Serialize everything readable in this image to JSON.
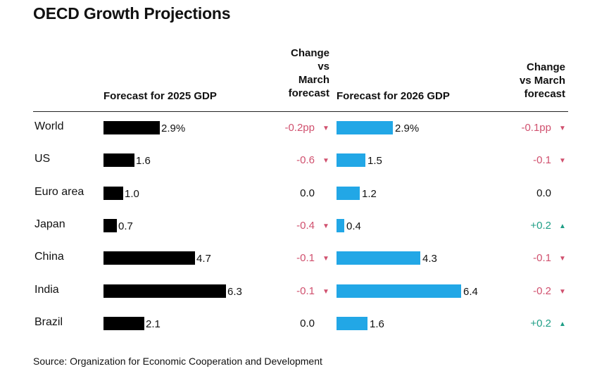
{
  "chart_data": {
    "type": "bar",
    "title": "OECD Growth Projections",
    "columns": {
      "gdp2025": "Forecast for 2025 GDP",
      "chg2025": "Change vs March forecast",
      "gdp2026": "Forecast for 2026 GDP",
      "chg2026": "Change vs March forecast"
    },
    "rows": [
      {
        "country": "World",
        "gdp2025": 2.9,
        "gdp2025_label": "2.9%",
        "chg2025": "-0.2pp",
        "dir2025": "down",
        "gdp2026": 2.9,
        "gdp2026_label": "2.9%",
        "chg2026": "-0.1pp",
        "dir2026": "down"
      },
      {
        "country": "US",
        "gdp2025": 1.6,
        "gdp2025_label": "1.6",
        "chg2025": "-0.6",
        "dir2025": "down",
        "gdp2026": 1.5,
        "gdp2026_label": "1.5",
        "chg2026": "-0.1",
        "dir2026": "down"
      },
      {
        "country": "Euro area",
        "gdp2025": 1.0,
        "gdp2025_label": "1.0",
        "chg2025": "0.0",
        "dir2025": "none",
        "gdp2026": 1.2,
        "gdp2026_label": "1.2",
        "chg2026": "0.0",
        "dir2026": "none"
      },
      {
        "country": "Japan",
        "gdp2025": 0.7,
        "gdp2025_label": "0.7",
        "chg2025": "-0.4",
        "dir2025": "down",
        "gdp2026": 0.4,
        "gdp2026_label": "0.4",
        "chg2026": "+0.2",
        "dir2026": "up"
      },
      {
        "country": "China",
        "gdp2025": 4.7,
        "gdp2025_label": "4.7",
        "chg2025": "-0.1",
        "dir2025": "down",
        "gdp2026": 4.3,
        "gdp2026_label": "4.3",
        "chg2026": "-0.1",
        "dir2026": "down"
      },
      {
        "country": "India",
        "gdp2025": 6.3,
        "gdp2025_label": "6.3",
        "chg2025": "-0.1",
        "dir2025": "down",
        "gdp2026": 6.4,
        "gdp2026_label": "6.4",
        "chg2026": "-0.2",
        "dir2026": "down"
      },
      {
        "country": "Brazil",
        "gdp2025": 2.1,
        "gdp2025_label": "2.1",
        "chg2025": "0.0",
        "dir2025": "none",
        "gdp2026": 1.6,
        "gdp2026_label": "1.6",
        "chg2026": "+0.2",
        "dir2026": "up"
      }
    ],
    "source": "Source: Organization for Economic Cooperation and Development"
  },
  "headers": {
    "gdp2025": "Forecast for 2025 GDP",
    "chg2025_lines": [
      "Change",
      "vs",
      "March",
      "forecast"
    ],
    "gdp2026": "Forecast for 2026 GDP",
    "chg2026_lines": [
      "Change",
      "vs March",
      "forecast"
    ]
  },
  "arrows": {
    "down": "▼",
    "up": "▲"
  },
  "colors": {
    "bar2025": "#000000",
    "bar2026": "#22a7e6",
    "negative": "#d0506e",
    "positive": "#1f9e86",
    "neutral": "#111111"
  }
}
